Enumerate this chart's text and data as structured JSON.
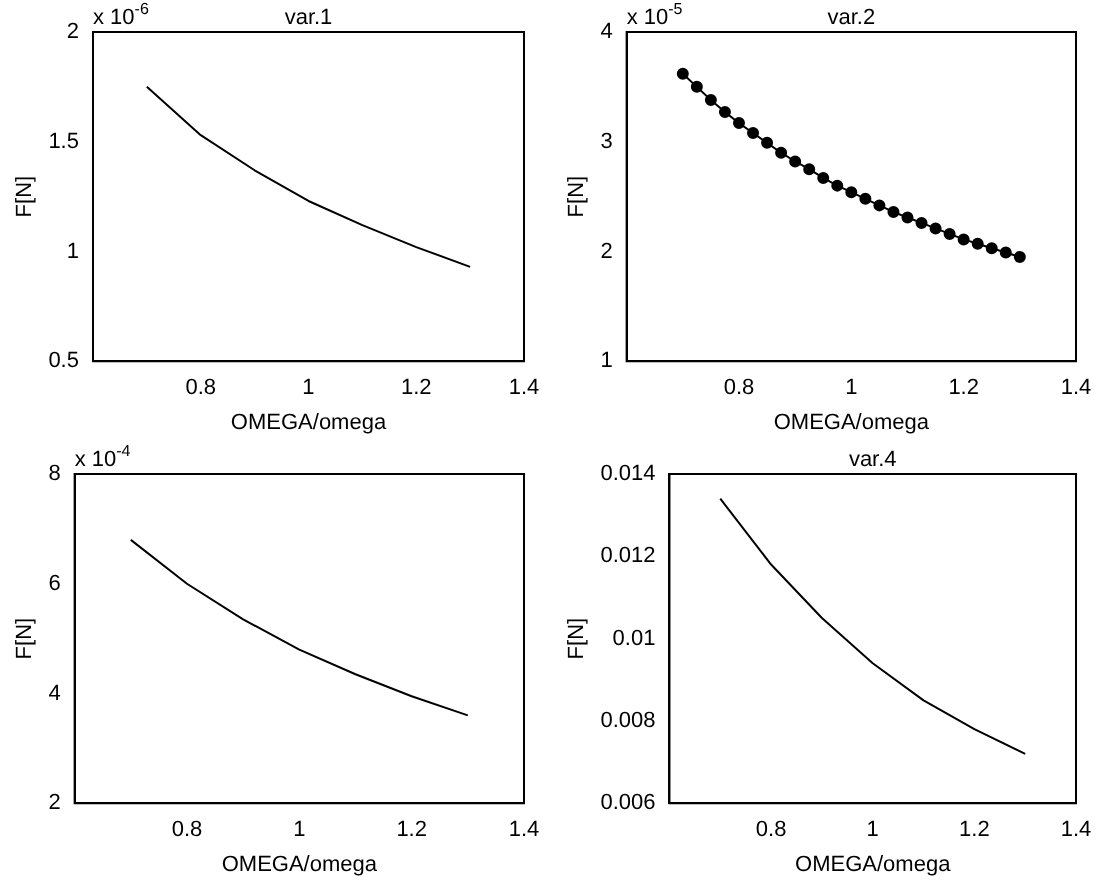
{
  "chart_data": [
    {
      "type": "line",
      "title": "var.1",
      "xlabel": "OMEGA/omega",
      "ylabel": "F[N]",
      "annotations": [
        "x 10$^{-6}$"
      ],
      "x": [
        0.7,
        0.8,
        0.9,
        1.0,
        1.1,
        1.2,
        1.3
      ],
      "series": [
        {
          "color": "#000000",
          "values": [
            1.75,
            1.53,
            1.37,
            1.23,
            1.12,
            1.02,
            0.93
          ]
        }
      ],
      "xlim": [
        0.6,
        1.4
      ],
      "xticks": [
        0.8,
        1,
        1.2,
        1.4
      ],
      "ylim": [
        0.5,
        2
      ],
      "yticks": [
        0.5,
        1,
        1.5,
        2
      ],
      "grid": false,
      "legend": false,
      "marker": "none",
      "line_style": "solid"
    },
    {
      "type": "line",
      "title": "var.2",
      "xlabel": "OMEGA/omega",
      "ylabel": "F[N]",
      "annotations": [
        "x 10$^{-5}$"
      ],
      "x": [
        0.7,
        0.725,
        0.75,
        0.775,
        0.8,
        0.825,
        0.85,
        0.875,
        0.9,
        0.925,
        0.95,
        0.975,
        1.0,
        1.025,
        1.05,
        1.075,
        1.1,
        1.125,
        1.15,
        1.175,
        1.2,
        1.225,
        1.25,
        1.275,
        1.3
      ],
      "series": [
        {
          "color": "#000000",
          "values": [
            3.62,
            3.5,
            3.38,
            3.27,
            3.17,
            3.08,
            2.99,
            2.9,
            2.82,
            2.75,
            2.67,
            2.6,
            2.54,
            2.48,
            2.42,
            2.36,
            2.31,
            2.26,
            2.21,
            2.16,
            2.11,
            2.07,
            2.03,
            1.99,
            1.95
          ]
        }
      ],
      "xlim": [
        0.6,
        1.4
      ],
      "xticks": [
        0.8,
        1,
        1.2,
        1.4
      ],
      "ylim": [
        1,
        4
      ],
      "yticks": [
        1,
        2,
        3,
        4
      ],
      "grid": false,
      "legend": false,
      "marker": "circle",
      "line_style": "solid"
    },
    {
      "type": "line",
      "xlabel": "OMEGA/omega",
      "ylabel": "F[N]",
      "annotations": [
        "x 10$^{-4}$"
      ],
      "x": [
        0.7,
        0.8,
        0.9,
        1.0,
        1.1,
        1.2,
        1.3
      ],
      "series": [
        {
          "color": "#000000",
          "values": [
            6.8,
            6.0,
            5.35,
            4.8,
            4.35,
            3.95,
            3.6
          ]
        }
      ],
      "xlim": [
        0.6,
        1.4
      ],
      "xticks": [
        0.8,
        1,
        1.2,
        1.4
      ],
      "ylim": [
        2,
        8
      ],
      "yticks": [
        2,
        4,
        6,
        8
      ],
      "grid": false,
      "legend": false,
      "marker": "none",
      "line_style": "solid"
    },
    {
      "type": "line",
      "title": "var.4",
      "xlabel": "OMEGA/omega",
      "ylabel": "F[N]",
      "x": [
        0.7,
        0.8,
        0.9,
        1.0,
        1.1,
        1.2,
        1.3
      ],
      "series": [
        {
          "color": "#000000",
          "values": [
            0.0134,
            0.0118,
            0.0105,
            0.0094,
            0.0085,
            0.0078,
            0.0072
          ]
        }
      ],
      "xlim": [
        0.6,
        1.4
      ],
      "xticks": [
        0.8,
        1,
        1.2,
        1.4
      ],
      "ylim": [
        0.006,
        0.014
      ],
      "yticks": [
        0.006,
        0.008,
        0.01,
        0.012,
        0.014
      ],
      "grid": false,
      "legend": false,
      "marker": "none",
      "line_style": "solid"
    }
  ]
}
